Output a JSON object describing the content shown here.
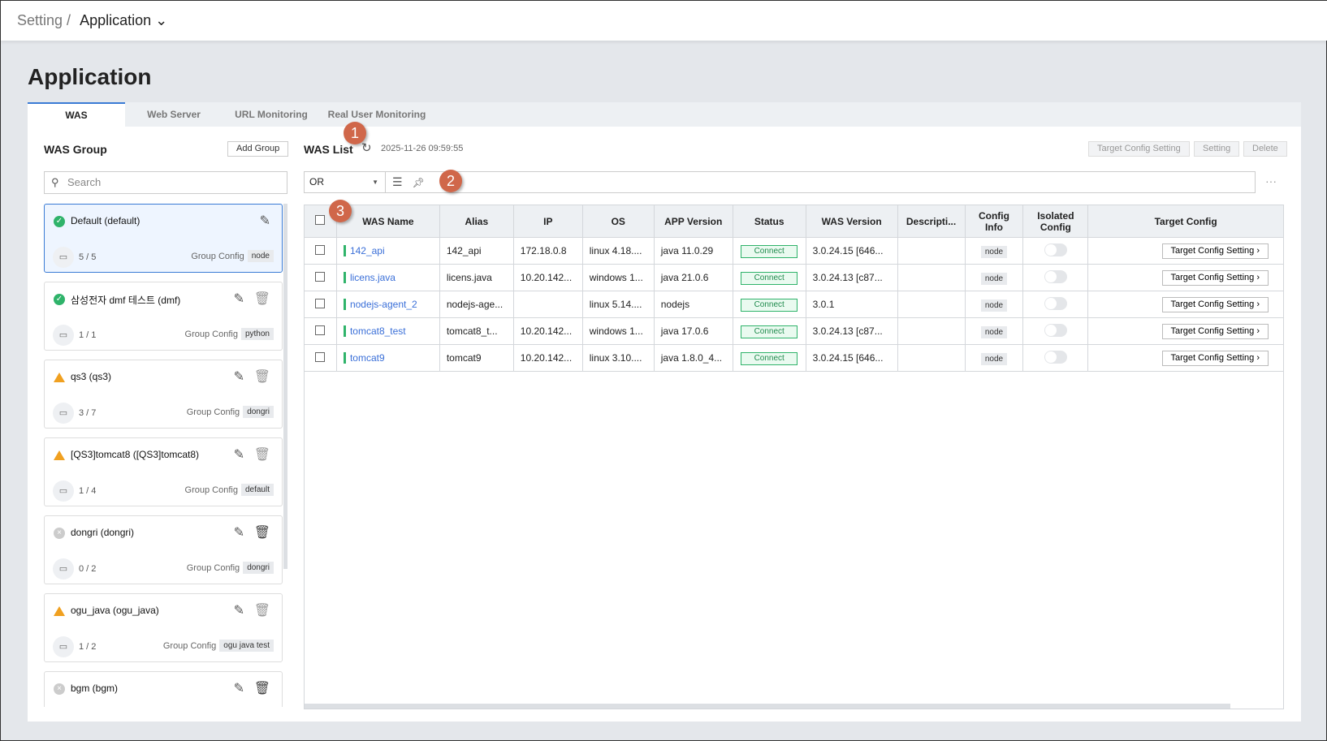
{
  "breadcrumb": {
    "parent": "Setting",
    "current": "Application",
    "chevron": "chevron-down-icon"
  },
  "page_title": "Application",
  "tabs": [
    "WAS",
    "Web Server",
    "URL Monitoring",
    "Real User Monitoring"
  ],
  "group_panel": {
    "title": "WAS Group",
    "add_button": "Add Group",
    "search_placeholder": "Search",
    "groups": [
      {
        "name": "Default (default)",
        "status": "ok",
        "count": "5 / 5",
        "config_label": "Group Config",
        "config": "node",
        "selected": true,
        "deletable": false
      },
      {
        "name": "삼성전자 dmf 테스트 (dmf)",
        "status": "ok",
        "count": "1 / 1",
        "config_label": "Group Config",
        "config": "python"
      },
      {
        "name": "qs3 (qs3)",
        "status": "warn",
        "count": "3 / 7",
        "config_label": "Group Config",
        "config": "dongri"
      },
      {
        "name": "[QS3]tomcat8 ([QS3]tomcat8)",
        "status": "warn",
        "count": "1 / 4",
        "config_label": "Group Config",
        "config": "default"
      },
      {
        "name": "dongri (dongri)",
        "status": "off",
        "count": "0 / 2",
        "config_label": "Group Config",
        "config": "dongri"
      },
      {
        "name": "ogu_java (ogu_java)",
        "status": "warn",
        "count": "1 / 2",
        "config_label": "Group Config",
        "config": "ogu java test"
      },
      {
        "name": "bgm (bgm)",
        "status": "off",
        "count": "",
        "config_label": "",
        "config": ""
      }
    ]
  },
  "list_panel": {
    "title": "WAS List",
    "timestamp": "2025-11-26 09:59:55",
    "buttons": [
      "Target Config Setting",
      "Setting",
      "Delete"
    ],
    "filter_mode": "OR",
    "columns": [
      "WAS Name",
      "Alias",
      "IP",
      "OS",
      "APP Version",
      "Status",
      "WAS Version",
      "Descripti...",
      "Config Info",
      "Isolated Config",
      "Target Config"
    ],
    "rows": [
      {
        "name": "142_api",
        "alias": "142_api",
        "ip": "172.18.0.8",
        "os": "linux 4.18....",
        "app": "java 11.0.29",
        "status": "Connect",
        "was": "3.0.24.15 [646...",
        "desc": "",
        "config": "node",
        "target": "Target Config Setting"
      },
      {
        "name": "licens.java",
        "alias": "licens.java",
        "ip": "10.20.142...",
        "os": "windows 1...",
        "app": "java 21.0.6",
        "status": "Connect",
        "was": "3.0.24.13 [c87...",
        "desc": "",
        "config": "node",
        "target": "Target Config Setting"
      },
      {
        "name": "nodejs-agent_2",
        "alias": "nodejs-age...",
        "ip": "",
        "os": "linux 5.14....",
        "app": "nodejs",
        "status": "Connect",
        "was": "3.0.1",
        "desc": "",
        "config": "node",
        "target": "Target Config Setting"
      },
      {
        "name": "tomcat8_test",
        "alias": "tomcat8_t...",
        "ip": "10.20.142...",
        "os": "windows 1...",
        "app": "java 17.0.6",
        "status": "Connect",
        "was": "3.0.24.13 [c87...",
        "desc": "",
        "config": "node",
        "target": "Target Config Setting"
      },
      {
        "name": "tomcat9",
        "alias": "tomcat9",
        "ip": "10.20.142...",
        "os": "linux 3.10....",
        "app": "java 1.8.0_4...",
        "status": "Connect",
        "was": "3.0.24.15 [646...",
        "desc": "",
        "config": "node",
        "target": "Target Config Setting"
      }
    ]
  },
  "annotations": [
    "1",
    "2",
    "3"
  ],
  "colors": {
    "accent": "#3a7bd5",
    "ok": "#2fb36a",
    "warn": "#f0a020",
    "annotation": "#d0674a"
  }
}
